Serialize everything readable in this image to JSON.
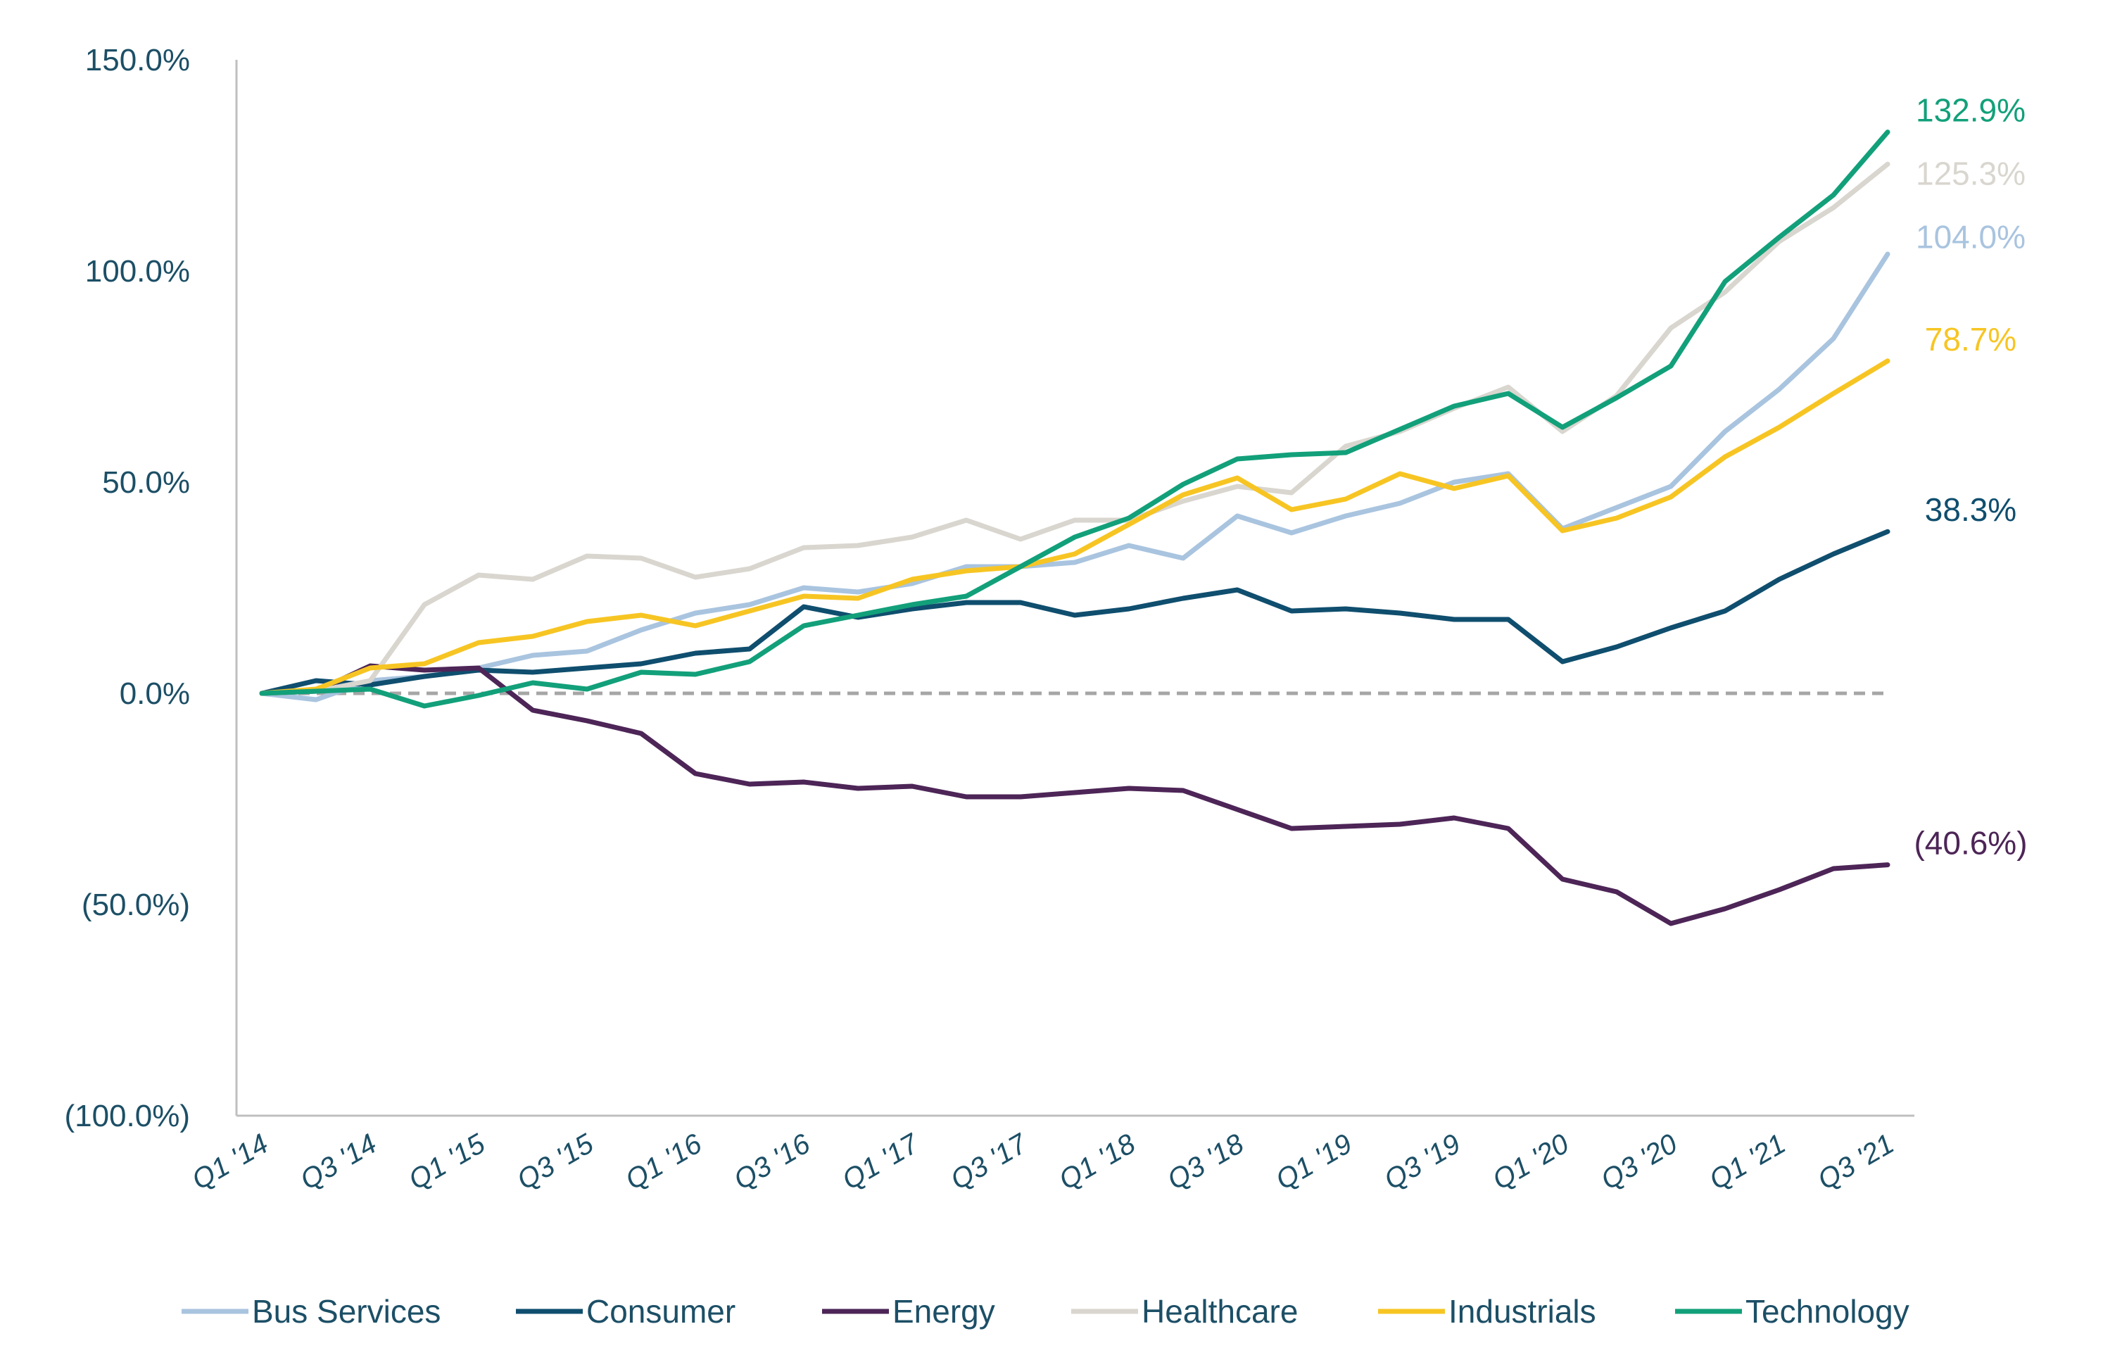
{
  "chart_data": {
    "type": "line",
    "title": "",
    "xlabel": "",
    "ylabel": "",
    "ylim": [
      -100,
      150
    ],
    "yticks": [
      {
        "value": 150,
        "label": "150.0%"
      },
      {
        "value": 100,
        "label": "100.0%"
      },
      {
        "value": 50,
        "label": "50.0%"
      },
      {
        "value": 0,
        "label": "0.0%"
      },
      {
        "value": -50,
        "label": "(50.0%)"
      },
      {
        "value": -100,
        "label": "(100.0%)"
      }
    ],
    "x_tick_labels": [
      "Q1 '14",
      "Q3 '14",
      "Q1 '15",
      "Q3 '15",
      "Q1 '16",
      "Q3 '16",
      "Q1 '17",
      "Q3 '17",
      "Q1 '18",
      "Q3 '18",
      "Q1 '19",
      "Q3 '19",
      "Q1 '20",
      "Q3 '20",
      "Q1 '21",
      "Q3 '21"
    ],
    "categories": [
      "Q1 '14",
      "Q2 '14",
      "Q3 '14",
      "Q4 '14",
      "Q1 '15",
      "Q2 '15",
      "Q3 '15",
      "Q4 '15",
      "Q1 '16",
      "Q2 '16",
      "Q3 '16",
      "Q4 '16",
      "Q1 '17",
      "Q2 '17",
      "Q3 '17",
      "Q4 '17",
      "Q1 '18",
      "Q2 '18",
      "Q3 '18",
      "Q4 '18",
      "Q1 '19",
      "Q2 '19",
      "Q3 '19",
      "Q4 '19",
      "Q1 '20",
      "Q2 '20",
      "Q3 '20",
      "Q4 '20",
      "Q1 '21",
      "Q2 '21",
      "Q3 '21"
    ],
    "grid": false,
    "zero_line": "dashed",
    "legend_position": "bottom",
    "series": [
      {
        "name": "Bus Services",
        "color": "#a9c4df",
        "end_label": "104.0%",
        "values": [
          0,
          -1.5,
          3,
          4,
          6,
          9,
          10,
          15,
          19,
          21,
          25,
          24,
          26,
          30,
          30,
          31,
          35,
          32,
          42,
          38,
          42,
          45,
          50,
          52,
          39,
          44,
          49,
          62,
          72,
          84,
          104
        ]
      },
      {
        "name": "Consumer",
        "color": "#0f4e6e",
        "end_label": "38.3%",
        "values": [
          0,
          3,
          2,
          4,
          5.5,
          5,
          6,
          7,
          9.5,
          10.5,
          20.5,
          18,
          20,
          21.5,
          21.5,
          18.5,
          20,
          22.5,
          24.5,
          19.5,
          20,
          19,
          17.5,
          17.5,
          7.5,
          11,
          15.5,
          19.5,
          27,
          33,
          38.3
        ]
      },
      {
        "name": "Energy",
        "color": "#4d2557",
        "end_label": "(40.6%)",
        "values": [
          0,
          0.5,
          6.5,
          5.5,
          6,
          -4,
          -6.5,
          -9.5,
          -19,
          -21.5,
          -21,
          -22.5,
          -22,
          -24.5,
          -24.5,
          -23.5,
          -22.5,
          -23,
          -27.5,
          -32,
          -31.5,
          -31,
          -29.5,
          -32,
          -44,
          -47,
          -54.5,
          -51,
          -46.5,
          -41.5,
          -40.6
        ]
      },
      {
        "name": "Healthcare",
        "color": "#d9d6cf",
        "end_label": "125.3%",
        "values": [
          0,
          0.5,
          3,
          21,
          28,
          27,
          32.5,
          32,
          27.5,
          29.5,
          34.5,
          35,
          37,
          41,
          36.5,
          41,
          41,
          45.5,
          49,
          47.5,
          58.5,
          62,
          67.5,
          72.5,
          62,
          70.5,
          86.5,
          95,
          107,
          115,
          125.3
        ]
      },
      {
        "name": "Industrials",
        "color": "#f7c523",
        "end_label": "78.7%",
        "values": [
          0,
          1,
          6,
          7,
          12,
          13.5,
          17,
          18.5,
          16,
          19.5,
          23,
          22.5,
          27,
          29,
          30,
          33,
          40,
          47,
          51,
          43.5,
          46,
          52,
          48.5,
          51.5,
          38.5,
          41.5,
          46.5,
          56,
          63,
          71,
          78.7
        ]
      },
      {
        "name": "Technology",
        "color": "#12a07a",
        "end_label": "132.9%",
        "values": [
          0,
          0.5,
          1,
          -3,
          -0.5,
          2.5,
          1,
          5,
          4.5,
          7.5,
          16,
          18.5,
          21,
          23,
          30,
          37,
          41.5,
          49.5,
          55.5,
          56.5,
          57,
          62.5,
          68,
          71,
          63,
          70,
          77.5,
          97.5,
          108,
          118,
          132.9
        ]
      }
    ]
  }
}
